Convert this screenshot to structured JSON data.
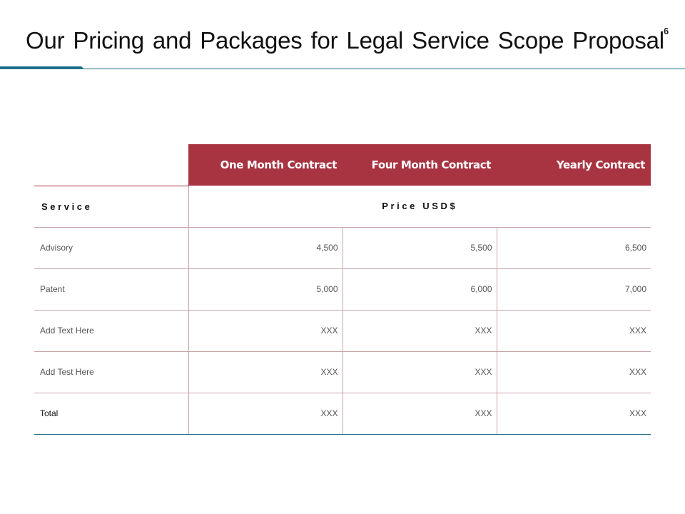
{
  "slide": {
    "title": "Our Pricing and Packages for Legal Service Scope Proposal",
    "page_number": "6"
  },
  "colors": {
    "header_fill": "#a83442",
    "accent_line": "#1f6f8b",
    "grid_line": "#c9a4a9"
  },
  "table": {
    "columns": [
      "One Month Contract",
      "Four Month Contract",
      "Yearly Contract"
    ],
    "service_label": "Service",
    "price_label": "Price USD$",
    "rows": [
      {
        "label": "Advisory",
        "values": [
          "4,500",
          "5,500",
          "6,500"
        ]
      },
      {
        "label": "Patent",
        "values": [
          "5,000",
          "6,000",
          "7,000"
        ]
      },
      {
        "label": "Add Text Here",
        "values": [
          "XXX",
          "XXX",
          "XXX"
        ]
      },
      {
        "label": "Add Test Here",
        "values": [
          "XXX",
          "XXX",
          "XXX"
        ]
      },
      {
        "label": "Total",
        "values": [
          "XXX",
          "XXX",
          "XXX"
        ]
      }
    ]
  }
}
